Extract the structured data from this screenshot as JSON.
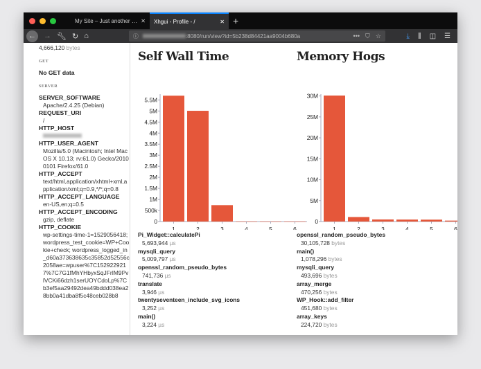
{
  "browser": {
    "tabs": [
      {
        "title": "My Site – Just another WordPress s",
        "active": false
      },
      {
        "title": "Xhgui - Profile - /",
        "active": true
      }
    ],
    "url_visible": ":8080/run/view?id=5b238d84421aa9004b680a",
    "colors": {
      "accent": "#0a84ff",
      "download": "#45a1ff"
    }
  },
  "sidebar": {
    "memory_value": "4,666,120",
    "memory_unit": "bytes",
    "get_heading": "GET",
    "get_empty": "No GET data",
    "server_heading": "SERVER",
    "items": [
      {
        "key": "SERVER_SOFTWARE",
        "value": "Apache/2.4.25 (Debian)"
      },
      {
        "key": "REQUEST_URI",
        "value": "/"
      },
      {
        "key": "HTTP_HOST",
        "value": ""
      },
      {
        "key": "HTTP_USER_AGENT",
        "value": "Mozilla/5.0 (Macintosh; Intel Mac OS X 10.13; rv:61.0) Gecko/20100101 Firefox/61.0"
      },
      {
        "key": "HTTP_ACCEPT",
        "value": "text/html,application/xhtml+xml,application/xml;q=0.9,*/*;q=0.8"
      },
      {
        "key": "HTTP_ACCEPT_LANGUAGE",
        "value": "en-US,en;q=0.5"
      },
      {
        "key": "HTTP_ACCEPT_ENCODING",
        "value": "gzip, deflate"
      },
      {
        "key": "HTTP_COOKIE",
        "value": "wp-settings-time-1=1529056418; wordpress_test_cookie=WP+Cookie+check; wordpress_logged_in_d60a373638635c35852d52556c2058ae=wpuser%7C1529229217%7C7G1fMhYHbyxSqJFrIM9PvlVCKi66dzh1serUOYCdoLp%7Cb3ef5aa29492dea49bddd038ea28bb0a41dba8f5c48ceb028b8"
      }
    ]
  },
  "chart_data": [
    {
      "type": "bar",
      "title": "Self Wall Time",
      "categories": [
        "1",
        "2",
        "3",
        "4",
        "5",
        "6"
      ],
      "values": [
        5693944,
        5009797,
        741736,
        3946,
        3252,
        3224
      ],
      "ylim": [
        0,
        5700000
      ],
      "yticks": [
        "0",
        "500k",
        "1M",
        "1.5M",
        "2M",
        "2.5M",
        "3M",
        "3.5M",
        "4M",
        "4.5M",
        "5M",
        "5.5M"
      ],
      "ytick_values": [
        0,
        500000,
        1000000,
        1500000,
        2000000,
        2500000,
        3000000,
        3500000,
        4000000,
        4500000,
        5000000,
        5500000
      ],
      "color": "#e5573a",
      "grid": false
    },
    {
      "type": "bar",
      "title": "Memory Hogs",
      "categories": [
        "1",
        "2",
        "3",
        "4",
        "5",
        "6"
      ],
      "values": [
        30105728,
        1078296,
        493696,
        470256,
        451680,
        224720
      ],
      "ylim": [
        0,
        30105728
      ],
      "yticks": [
        "0",
        "5M",
        "10M",
        "15M",
        "20M",
        "25M",
        "30M"
      ],
      "ytick_values": [
        0,
        5000000,
        10000000,
        15000000,
        20000000,
        25000000,
        30000000
      ],
      "color": "#e5573a",
      "grid": false
    }
  ],
  "lists": [
    {
      "unit": "µs",
      "items": [
        {
          "name": "Pi_Widget::calculatePi",
          "value": "5,693,944"
        },
        {
          "name": "mysqli_query",
          "value": "5,009,797"
        },
        {
          "name": "openssl_random_pseudo_bytes",
          "value": "741,736"
        },
        {
          "name": "translate",
          "value": "3,946"
        },
        {
          "name": "twentyseventeen_include_svg_icons",
          "value": "3,252"
        },
        {
          "name": "main()",
          "value": "3,224"
        }
      ]
    },
    {
      "unit": "bytes",
      "items": [
        {
          "name": "openssl_random_pseudo_bytes",
          "value": "30,105,728"
        },
        {
          "name": "main()",
          "value": "1,078,296"
        },
        {
          "name": "mysqli_query",
          "value": "493,696"
        },
        {
          "name": "array_merge",
          "value": "470,256"
        },
        {
          "name": "WP_Hook::add_filter",
          "value": "451,680"
        },
        {
          "name": "array_keys",
          "value": "224,720"
        }
      ]
    }
  ]
}
